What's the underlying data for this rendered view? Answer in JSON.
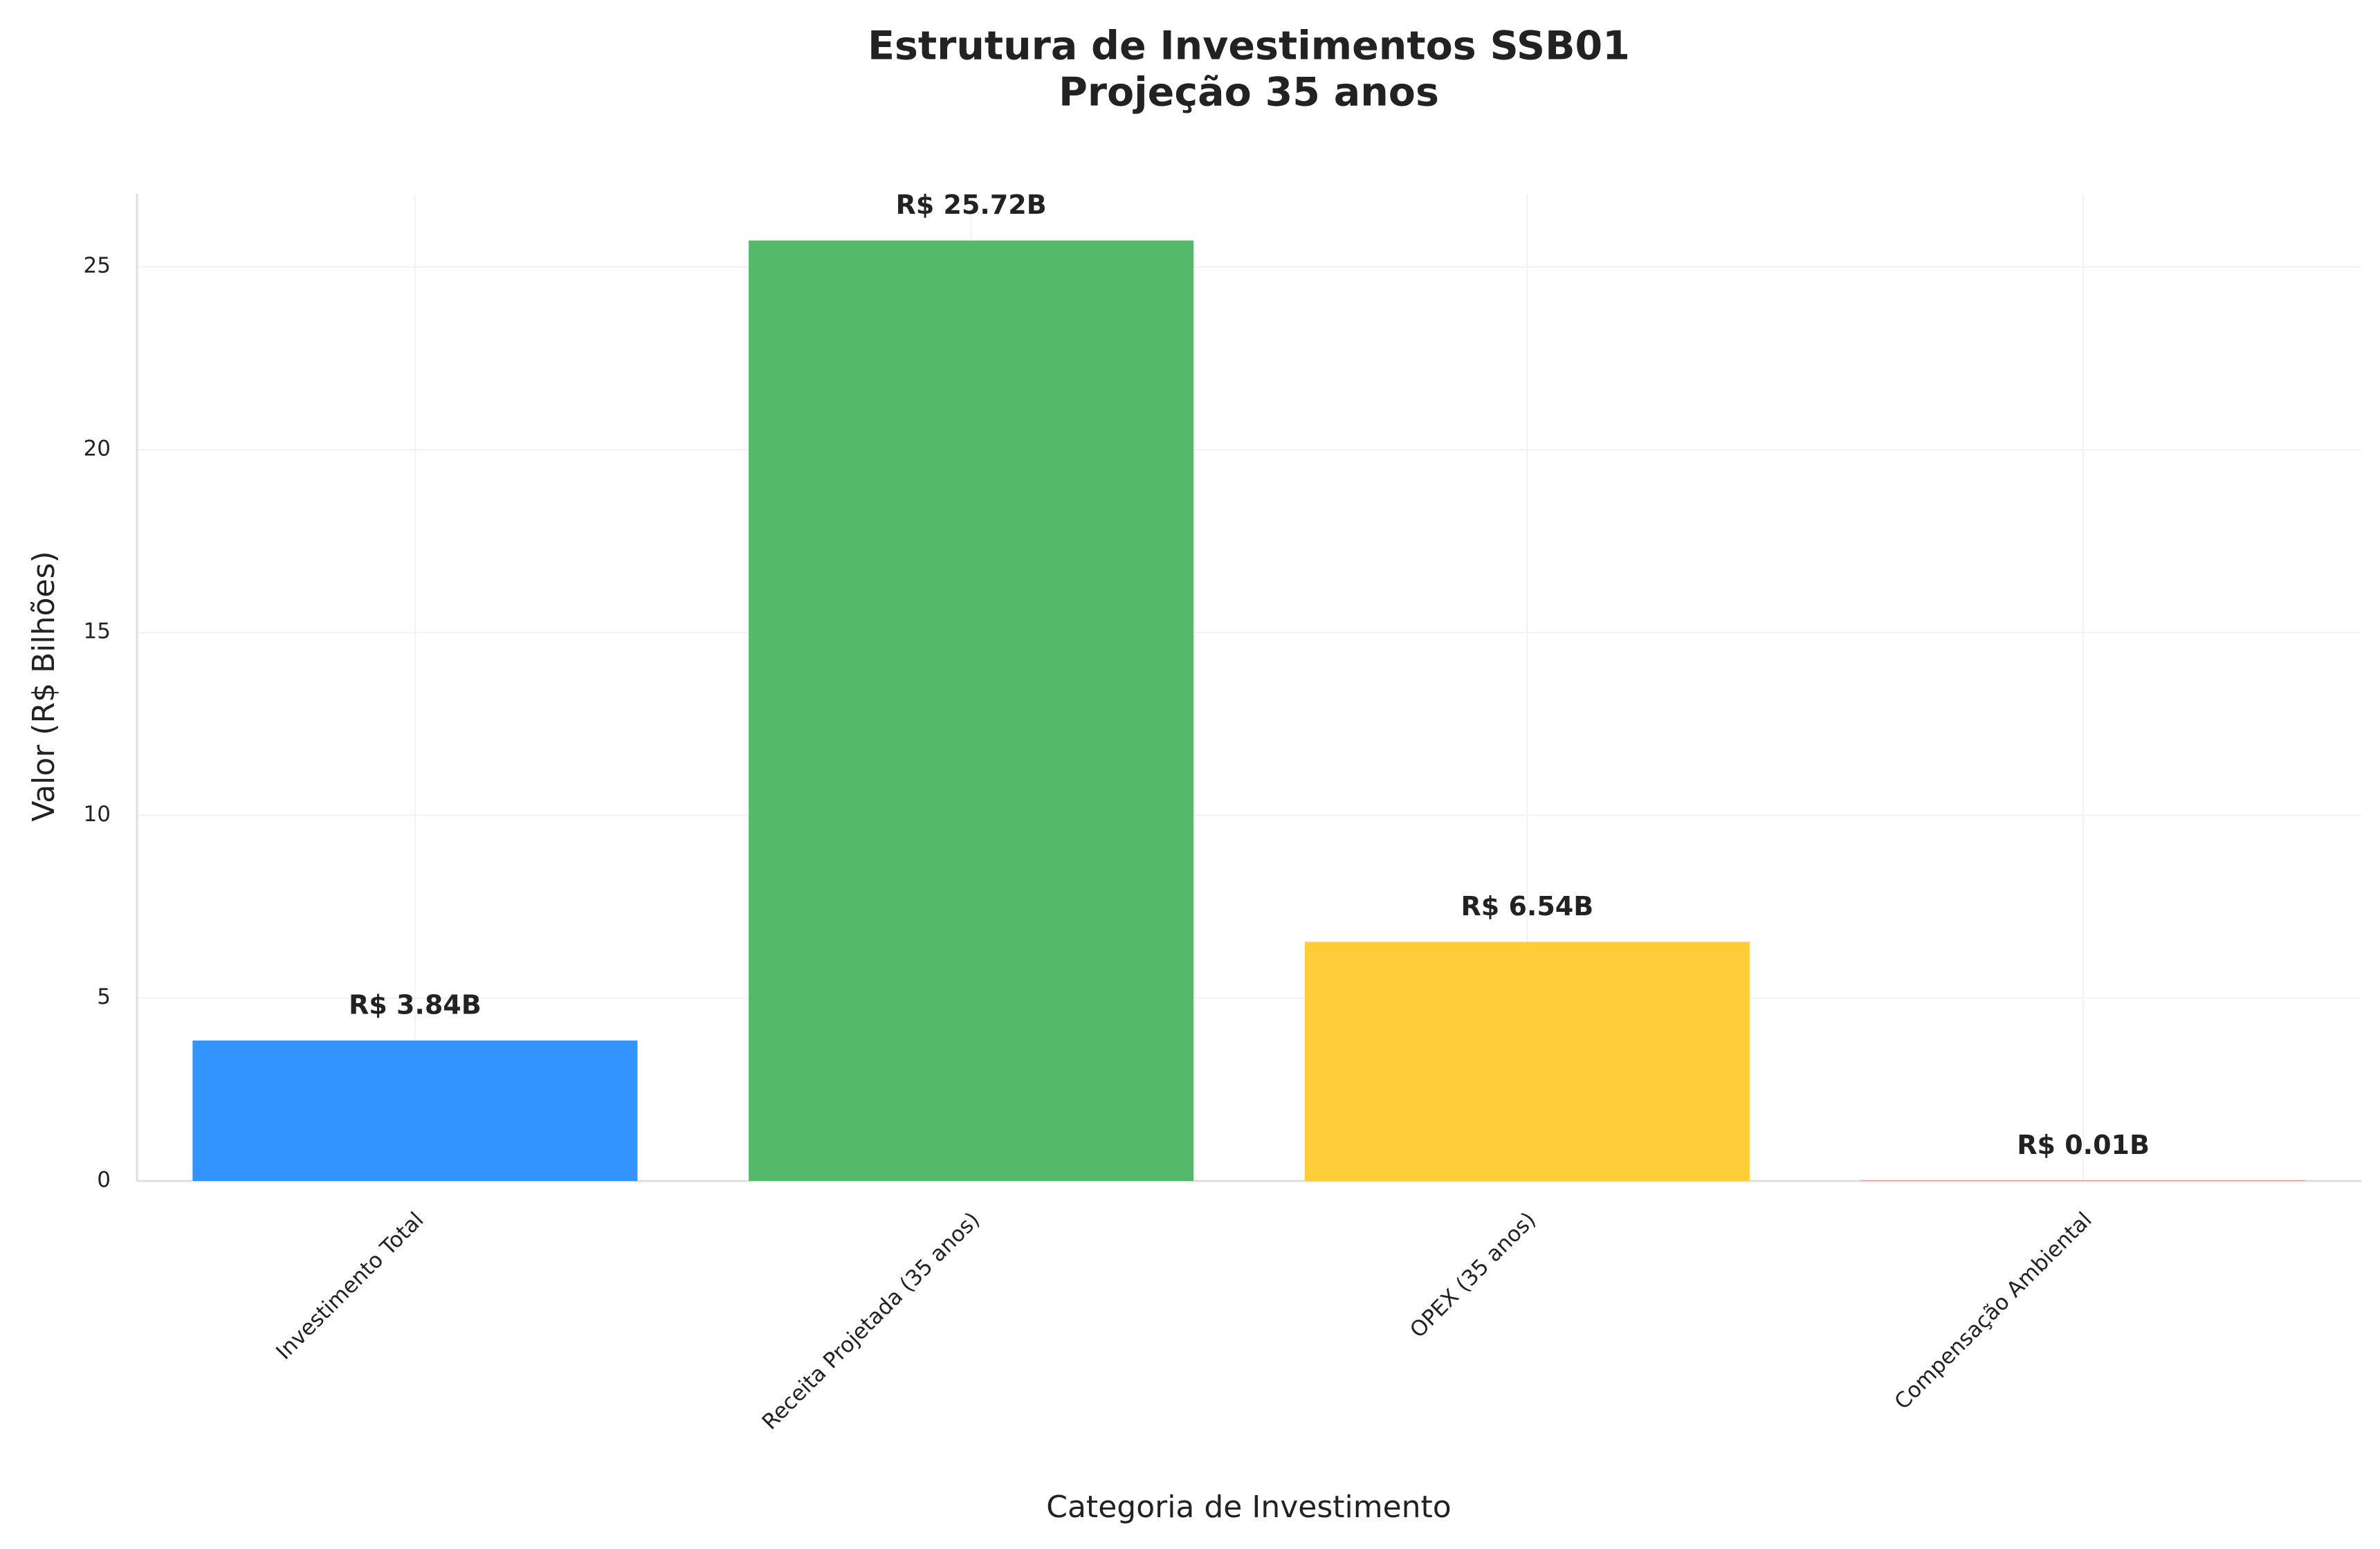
{
  "chart_data": {
    "type": "bar",
    "title": [
      "Estrutura de Investimentos SSB01",
      "Projeção 35 anos"
    ],
    "x_label": "Categoria de Investimento",
    "y_label": "Valor (R$ Bilhões)",
    "categories": [
      "Investimento Total",
      "Receita Projetada (35 anos)",
      "OPEX (35 anos)",
      "Compensação Ambiental"
    ],
    "values": [
      3.84,
      25.72,
      6.54,
      0.01
    ],
    "value_labels": [
      "R$ 3.84B",
      "R$ 25.72B",
      "R$ 6.54B",
      "R$ 0.01B"
    ],
    "colors": [
      "#3393ff",
      "#55b96b",
      "#ffcc3a",
      "#e0605a"
    ],
    "ylim": [
      0,
      27
    ],
    "yticks": [
      0,
      5,
      10,
      15,
      20,
      25
    ],
    "grid": true
  }
}
